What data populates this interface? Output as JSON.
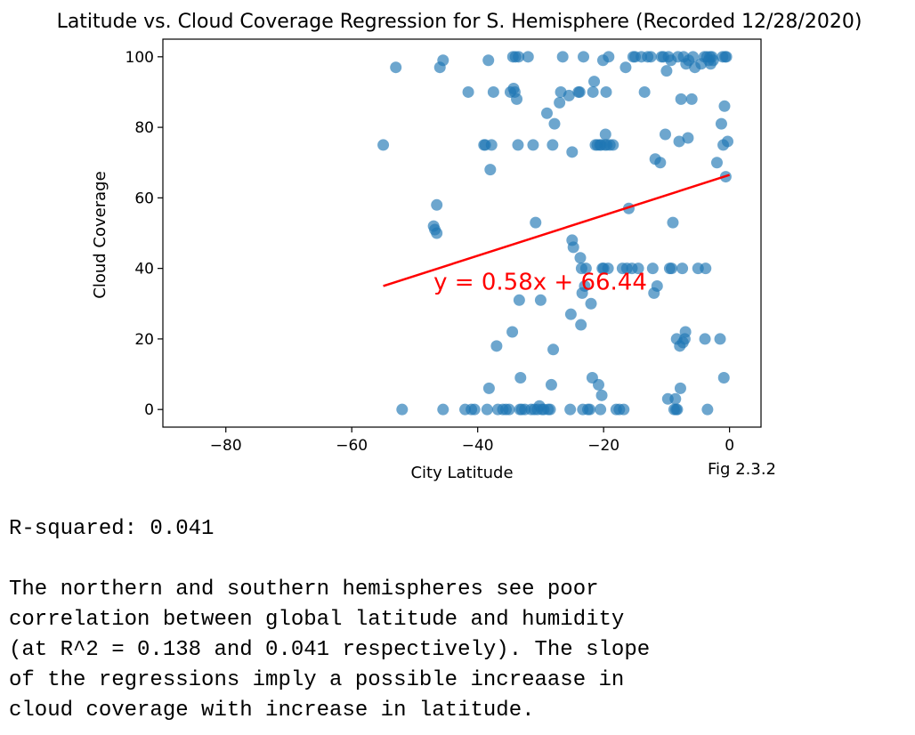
{
  "chart_data": {
    "type": "scatter",
    "title": "Latitude vs. Cloud Coverage Regression for S. Hemisphere (Recorded 12/28/2020)",
    "xlabel": "City Latitude",
    "ylabel": "Cloud Coverage",
    "xlim": [
      -90,
      5
    ],
    "ylim": [
      -5,
      105
    ],
    "xticks": [
      -80,
      -60,
      -40,
      -20,
      0
    ],
    "xtick_labels": [
      "−80",
      "−60",
      "−40",
      "−20",
      "0"
    ],
    "yticks": [
      0,
      20,
      40,
      60,
      80,
      100
    ],
    "grid": false,
    "point_color": "#1f77b4",
    "line_color": "#ff0000",
    "regression": {
      "x_start": -55,
      "y_start": 35,
      "x_end": 0,
      "y_end": 66.5
    },
    "equation_label": "y = 0.58x + 66.44",
    "equation_pos": {
      "x": -47,
      "y": 34
    },
    "fig_label": "Fig 2.3.2",
    "points": [
      [
        -55,
        75
      ],
      [
        -53,
        97
      ],
      [
        -52,
        0
      ],
      [
        -47,
        52
      ],
      [
        -46.8,
        51
      ],
      [
        -46.5,
        50
      ],
      [
        -46.5,
        58
      ],
      [
        -46,
        97
      ],
      [
        -45.5,
        99
      ],
      [
        -45.5,
        0
      ],
      [
        -42,
        0
      ],
      [
        -41.5,
        90
      ],
      [
        -41,
        0
      ],
      [
        -40.5,
        0
      ],
      [
        -39,
        75
      ],
      [
        -38.8,
        75
      ],
      [
        -38.5,
        0
      ],
      [
        -38.3,
        99
      ],
      [
        -38.2,
        6
      ],
      [
        -38,
        68
      ],
      [
        -37.8,
        75
      ],
      [
        -37.5,
        90
      ],
      [
        -37,
        18
      ],
      [
        -36.8,
        0
      ],
      [
        -36,
        0
      ],
      [
        -35.5,
        0
      ],
      [
        -35,
        0
      ],
      [
        -34.8,
        90
      ],
      [
        -34.5,
        22
      ],
      [
        -34.4,
        100
      ],
      [
        -34.3,
        91
      ],
      [
        -34.1,
        90
      ],
      [
        -34,
        100
      ],
      [
        -33.8,
        88
      ],
      [
        -33.6,
        75
      ],
      [
        -33.5,
        100
      ],
      [
        -33.4,
        31
      ],
      [
        -33.3,
        0
      ],
      [
        -33.2,
        9
      ],
      [
        -33,
        0
      ],
      [
        -32.5,
        0
      ],
      [
        -32,
        100
      ],
      [
        -31.5,
        0
      ],
      [
        -31.2,
        75
      ],
      [
        -31,
        0
      ],
      [
        -30.8,
        53
      ],
      [
        -30.5,
        0
      ],
      [
        -30.2,
        1
      ],
      [
        -30,
        31
      ],
      [
        -29.8,
        0
      ],
      [
        -29.5,
        0
      ],
      [
        -29,
        84
      ],
      [
        -28.8,
        0
      ],
      [
        -28.5,
        0
      ],
      [
        -28.3,
        7
      ],
      [
        -28.1,
        75
      ],
      [
        -28,
        17
      ],
      [
        -27.8,
        81
      ],
      [
        -27,
        87
      ],
      [
        -26.8,
        90
      ],
      [
        -26.5,
        100
      ],
      [
        -25.5,
        89
      ],
      [
        -25.3,
        0
      ],
      [
        -25.2,
        27
      ],
      [
        -25,
        73
      ],
      [
        -25,
        48
      ],
      [
        -24.8,
        46
      ],
      [
        -24,
        90
      ],
      [
        -23.8,
        90
      ],
      [
        -23.7,
        43
      ],
      [
        -23.6,
        24
      ],
      [
        -23.5,
        40
      ],
      [
        -23.4,
        33
      ],
      [
        -23.3,
        0
      ],
      [
        -23.2,
        100
      ],
      [
        -23,
        35
      ],
      [
        -22.8,
        40
      ],
      [
        -22.5,
        0
      ],
      [
        -22.2,
        0
      ],
      [
        -22,
        30
      ],
      [
        -21.8,
        9
      ],
      [
        -21.7,
        90
      ],
      [
        -21.5,
        93
      ],
      [
        -21.3,
        75
      ],
      [
        -21,
        75
      ],
      [
        -20.8,
        7
      ],
      [
        -20.6,
        75
      ],
      [
        -20.5,
        0
      ],
      [
        -20.4,
        75
      ],
      [
        -20.3,
        4
      ],
      [
        -20.2,
        40
      ],
      [
        -20.1,
        99
      ],
      [
        -20,
        40
      ],
      [
        -19.8,
        75
      ],
      [
        -19.7,
        78
      ],
      [
        -19.6,
        90
      ],
      [
        -19.5,
        75
      ],
      [
        -19.3,
        40
      ],
      [
        -19.2,
        100
      ],
      [
        -19,
        75
      ],
      [
        -18.5,
        75
      ],
      [
        -18,
        0
      ],
      [
        -17.5,
        0
      ],
      [
        -17,
        40
      ],
      [
        -16.8,
        0
      ],
      [
        -16.5,
        97
      ],
      [
        -16.3,
        40
      ],
      [
        -16,
        57
      ],
      [
        -15.5,
        40
      ],
      [
        -15.3,
        100
      ],
      [
        -15,
        100
      ],
      [
        -14.5,
        40
      ],
      [
        -14,
        100
      ],
      [
        -13.5,
        90
      ],
      [
        -13,
        100
      ],
      [
        -12.5,
        100
      ],
      [
        -12.2,
        40
      ],
      [
        -12,
        33
      ],
      [
        -11.8,
        71
      ],
      [
        -11.5,
        35
      ],
      [
        -11,
        70
      ],
      [
        -10.8,
        100
      ],
      [
        -10.5,
        100
      ],
      [
        -10.2,
        78
      ],
      [
        -10,
        96
      ],
      [
        -9.8,
        3
      ],
      [
        -9.7,
        100
      ],
      [
        -9.5,
        40
      ],
      [
        -9.3,
        99
      ],
      [
        -9.2,
        40
      ],
      [
        -9,
        53
      ],
      [
        -8.8,
        0
      ],
      [
        -8.6,
        3
      ],
      [
        -8.5,
        0
      ],
      [
        -8.4,
        20
      ],
      [
        -8.3,
        0
      ],
      [
        -8.2,
        100
      ],
      [
        -8,
        76
      ],
      [
        -7.9,
        18
      ],
      [
        -7.8,
        6
      ],
      [
        -7.7,
        88
      ],
      [
        -7.5,
        40
      ],
      [
        -7.4,
        19
      ],
      [
        -7.3,
        100
      ],
      [
        -7.1,
        20
      ],
      [
        -7,
        22
      ],
      [
        -6.9,
        98
      ],
      [
        -6.6,
        77
      ],
      [
        -6.5,
        99
      ],
      [
        -6,
        88
      ],
      [
        -5.8,
        100
      ],
      [
        -5.5,
        97
      ],
      [
        -5,
        40
      ],
      [
        -4.5,
        98
      ],
      [
        -4,
        100
      ],
      [
        -3.9,
        20
      ],
      [
        -3.8,
        40
      ],
      [
        -3.6,
        100
      ],
      [
        -3.5,
        0
      ],
      [
        -3.3,
        99
      ],
      [
        -3.1,
        100
      ],
      [
        -3,
        98
      ],
      [
        -2.8,
        100
      ],
      [
        -2.6,
        99
      ],
      [
        -2,
        70
      ],
      [
        -1.5,
        20
      ],
      [
        -1.3,
        81
      ],
      [
        -1.1,
        100
      ],
      [
        -1,
        75
      ],
      [
        -0.9,
        9
      ],
      [
        -0.8,
        86
      ],
      [
        -0.7,
        100
      ],
      [
        -0.6,
        66
      ],
      [
        -0.5,
        100
      ],
      [
        -0.3,
        76
      ]
    ]
  },
  "output": {
    "rsquared_line": "R-squared: 0.041",
    "paragraph_lines": [
      "The northern and southern hemispheres see poor",
      "correlation between global latitude and humidity",
      "(at R^2 = 0.138 and 0.041 respectively). The slope",
      "of the regressions imply a possible increaase in",
      "cloud coverage with increase in latitude."
    ]
  }
}
